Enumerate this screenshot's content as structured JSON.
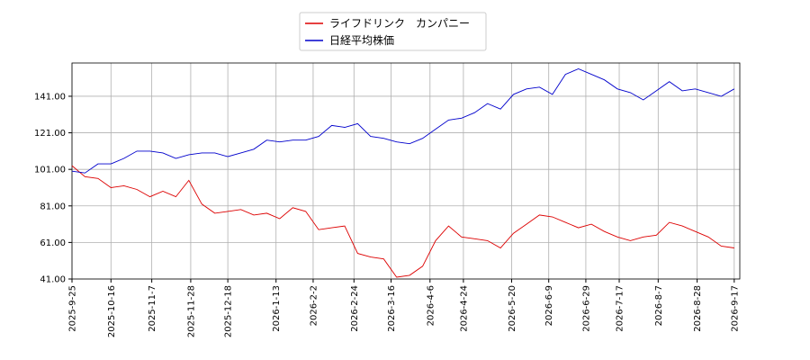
{
  "chart_data": {
    "type": "line",
    "x": [
      "2025-09-25",
      "2025-10-02",
      "2025-10-09",
      "2025-10-16",
      "2025-10-23",
      "2025-10-30",
      "2025-11-06",
      "2025-11-13",
      "2025-11-20",
      "2025-11-27",
      "2025-12-04",
      "2025-12-11",
      "2025-12-18",
      "2025-12-25",
      "2026-01-01",
      "2026-01-08",
      "2026-01-15",
      "2026-01-22",
      "2026-01-29",
      "2026-02-05",
      "2026-02-12",
      "2026-02-19",
      "2026-02-26",
      "2026-03-05",
      "2026-03-12",
      "2026-03-19",
      "2026-03-26",
      "2026-04-02",
      "2026-04-09",
      "2026-04-16",
      "2026-04-23",
      "2026-04-30",
      "2026-05-07",
      "2026-05-14",
      "2026-05-21",
      "2026-05-28",
      "2026-06-04",
      "2026-06-11",
      "2026-06-18",
      "2026-06-25",
      "2026-07-02",
      "2026-07-09",
      "2026-07-16",
      "2026-07-23",
      "2026-07-30",
      "2026-08-06",
      "2026-08-13",
      "2026-08-20",
      "2026-08-27",
      "2026-09-03",
      "2026-09-10",
      "2026-09-17"
    ],
    "series": [
      {
        "name": "ライフドリンク　カンパニー",
        "color": "#dd0000",
        "values": [
          103,
          97,
          96,
          91,
          92,
          90,
          86,
          89,
          86,
          95,
          82,
          77,
          78,
          79,
          76,
          77,
          74,
          80,
          78,
          68,
          69,
          70,
          55,
          53,
          52,
          42,
          43,
          48,
          62,
          70,
          64,
          63,
          62,
          58,
          66,
          71,
          76,
          75,
          72,
          69,
          71,
          67,
          64,
          62,
          64,
          65,
          72,
          70,
          67,
          64,
          59,
          58
        ]
      },
      {
        "name": "日経平均株価",
        "color": "#0000cc",
        "values": [
          100,
          99,
          104,
          104,
          107,
          111,
          111,
          110,
          107,
          109,
          110,
          110,
          108,
          110,
          112,
          117,
          116,
          117,
          117,
          119,
          125,
          124,
          126,
          119,
          118,
          116,
          115,
          118,
          123,
          128,
          129,
          132,
          137,
          134,
          142,
          145,
          146,
          142,
          153,
          156,
          153,
          150,
          145,
          143,
          139,
          144,
          149,
          144,
          145,
          143,
          141,
          145
        ]
      }
    ],
    "xlim": [
      "2025-09-25",
      "2026-09-20"
    ],
    "xticks": [
      {
        "value": "2025-09-25",
        "label": "2025-9-25"
      },
      {
        "value": "2025-10-16",
        "label": "2025-10-16"
      },
      {
        "value": "2025-11-07",
        "label": "2025-11-7"
      },
      {
        "value": "2025-11-28",
        "label": "2025-11-28"
      },
      {
        "value": "2025-12-18",
        "label": "2025-12-18"
      },
      {
        "value": "2026-01-13",
        "label": "2026-1-13"
      },
      {
        "value": "2026-02-02",
        "label": "2026-2-2"
      },
      {
        "value": "2026-02-24",
        "label": "2026-2-24"
      },
      {
        "value": "2026-03-16",
        "label": "2026-3-16"
      },
      {
        "value": "2026-04-06",
        "label": "2026-4-6"
      },
      {
        "value": "2026-04-24",
        "label": "2026-4-24"
      },
      {
        "value": "2026-05-20",
        "label": "2026-5-20"
      },
      {
        "value": "2026-06-09",
        "label": "2026-6-9"
      },
      {
        "value": "2026-06-29",
        "label": "2026-6-29"
      },
      {
        "value": "2026-07-17",
        "label": "2026-7-17"
      },
      {
        "value": "2026-08-07",
        "label": "2026-8-7"
      },
      {
        "value": "2026-08-28",
        "label": "2026-8-28"
      },
      {
        "value": "2026-09-17",
        "label": "2026-9-17"
      }
    ],
    "ylim": [
      41,
      159.2
    ],
    "yticks": [
      {
        "value": 41,
        "label": "41.00"
      },
      {
        "value": 61,
        "label": "61.00"
      },
      {
        "value": 81,
        "label": "81.00"
      },
      {
        "value": 101,
        "label": "101.00"
      },
      {
        "value": 121,
        "label": "121.00"
      },
      {
        "value": 141,
        "label": "141.00"
      }
    ],
    "grid": true
  }
}
